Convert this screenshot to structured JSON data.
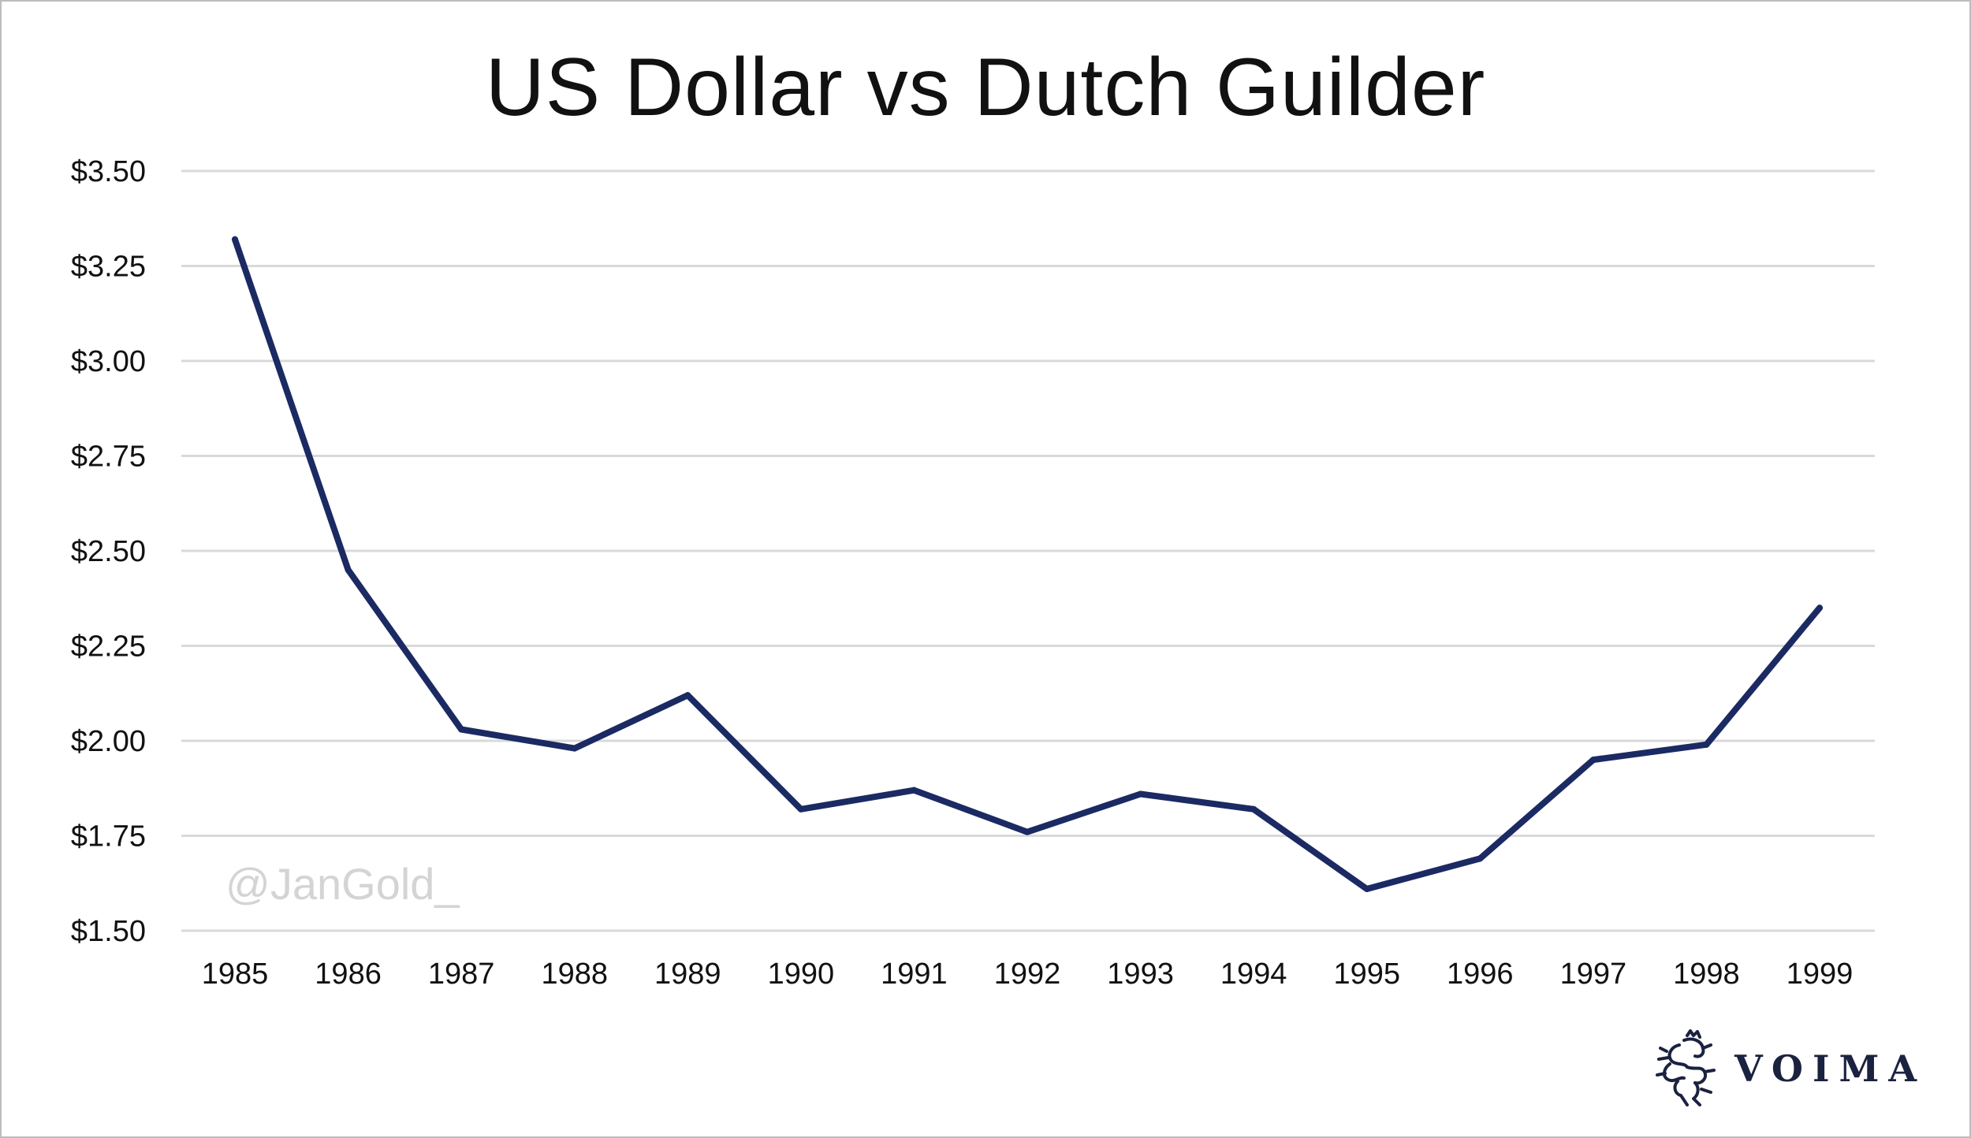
{
  "chart_data": {
    "type": "line",
    "title": "US Dollar vs Dutch Guilder",
    "xlabel": "",
    "ylabel": "",
    "categories": [
      "1985",
      "1986",
      "1987",
      "1988",
      "1989",
      "1990",
      "1991",
      "1992",
      "1993",
      "1994",
      "1995",
      "1996",
      "1997",
      "1998",
      "1999"
    ],
    "series": [
      {
        "values": [
          3.32,
          2.45,
          2.03,
          1.98,
          2.12,
          1.82,
          1.87,
          1.76,
          1.86,
          1.82,
          1.61,
          1.69,
          1.95,
          1.99,
          2.35
        ]
      }
    ],
    "ylim": [
      1.5,
      3.5
    ],
    "yticks": [
      1.5,
      1.75,
      2.0,
      2.25,
      2.5,
      2.75,
      3.0,
      3.25,
      3.5
    ],
    "ytick_labels": [
      "$1.50",
      "$1.75",
      "$2.00",
      "$2.25",
      "$2.50",
      "$2.75",
      "$3.00",
      "$3.25",
      "$3.50"
    ],
    "grid": true,
    "legend": "none",
    "line_color": "#1b2a63",
    "grid_color": "#d9d9d9"
  },
  "watermark": "@JanGold_",
  "brand": {
    "name": "VOIMA",
    "logo_icon": "lion-crest-icon"
  }
}
